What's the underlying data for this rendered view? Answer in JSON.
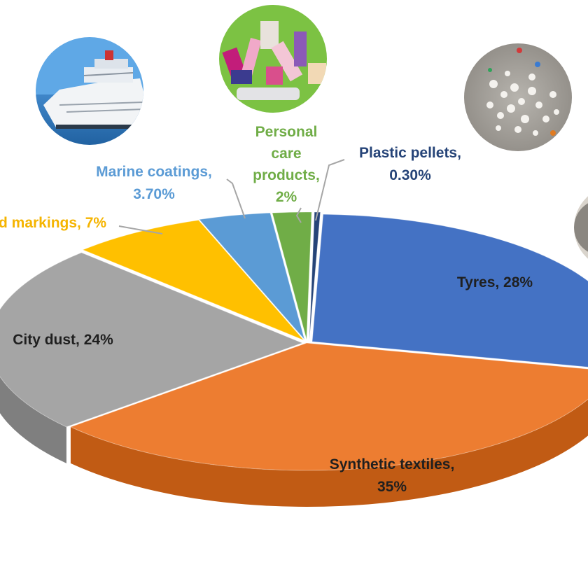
{
  "chart_data": {
    "type": "pie",
    "style": "3d-exploded",
    "title": "",
    "slices": [
      {
        "key": "tyres",
        "name": "Tyres",
        "value": 28,
        "label": "Tyres, 28%",
        "color": "#4472C4",
        "side": "#2F528F",
        "label_color": "#1F1F1F"
      },
      {
        "key": "textiles",
        "name": "Synthetic textiles",
        "value": 35,
        "label_lines": [
          "Synthetic textiles,",
          "35%"
        ],
        "color": "#ED7D31",
        "side": "#C15B14",
        "label_color": "#1F1F1F"
      },
      {
        "key": "dust",
        "name": "City dust",
        "value": 24,
        "label": "City dust, 24%",
        "color": "#A5A5A5",
        "side": "#7F7F7F",
        "label_color": "#1F1F1F"
      },
      {
        "key": "road",
        "name": "Road markings",
        "value": 7,
        "label": "d markings, 7%",
        "color": "#FFC000",
        "side": "#C99700",
        "label_color": "#F5B400"
      },
      {
        "key": "marine",
        "name": "Marine coatings",
        "value": 3.7,
        "label_lines": [
          "Marine coatings,",
          "3.70%"
        ],
        "color": "#5B9BD5",
        "side": "#3C78B0",
        "label_color": "#5B9BD5"
      },
      {
        "key": "care",
        "name": "Personal care products",
        "value": 2,
        "label_lines": [
          "Personal",
          "care",
          "products,",
          "2%"
        ],
        "color": "#70AD47",
        "side": "#4E8A2C",
        "label_color": "#70AD47"
      },
      {
        "key": "pellets",
        "name": "Plastic pellets",
        "value": 0.3,
        "label_lines": [
          "Plastic pellets,",
          "0.30%"
        ],
        "color": "#264478",
        "side": "#17305A",
        "label_color": "#264478"
      }
    ]
  },
  "images": {
    "ship": "cruise-ship-photo",
    "care": "cosmetics-photo",
    "pellets": "plastic-pellets-photo",
    "tyre": "tyre-photo"
  }
}
